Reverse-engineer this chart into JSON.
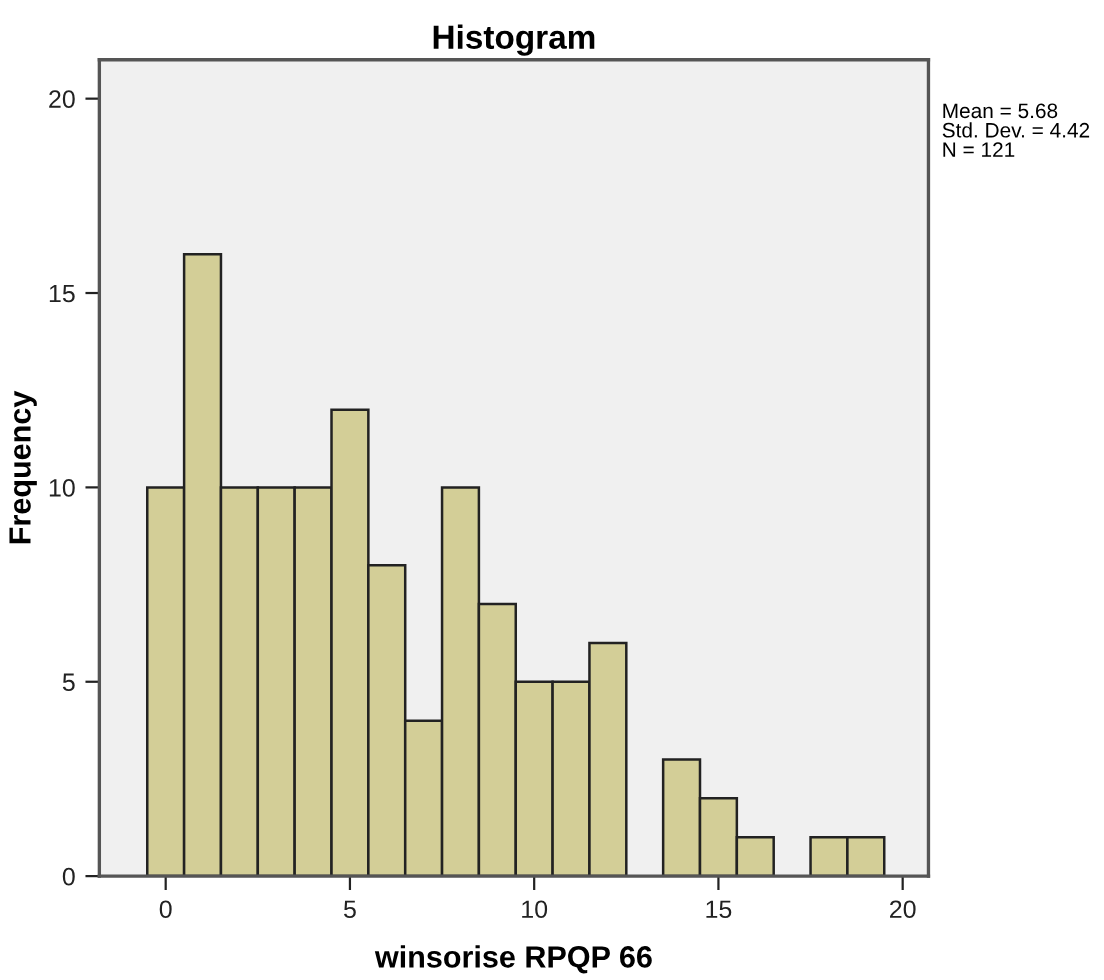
{
  "chart_data": {
    "type": "histogram",
    "title": "Histogram",
    "xlabel": "winsorise RPQP 66",
    "ylabel": "Frequency",
    "bins": [
      -0.5,
      0.5,
      1.5,
      2.5,
      3.5,
      4.5,
      5.5,
      6.5,
      7.5,
      8.5,
      9.5,
      10.5,
      11.5,
      12.5,
      13.5,
      14.5,
      15.5,
      16.5,
      17.5,
      18.5,
      19.5
    ],
    "values": [
      10,
      16,
      10,
      10,
      10,
      12,
      8,
      4,
      10,
      7,
      5,
      5,
      6,
      0,
      3,
      2,
      1,
      0,
      1,
      1
    ],
    "color": "#d3ce97",
    "xlim": [
      -1.8,
      20.7
    ],
    "xticks": [
      0,
      5,
      10,
      15,
      20
    ],
    "ylim": [
      0,
      21
    ],
    "yticks": [
      0,
      5,
      10,
      15,
      20
    ],
    "grid": false,
    "legend": false,
    "annotations": [
      "Mean = 5.68\nStd. Dev. = 4.42\nN = 121"
    ]
  }
}
